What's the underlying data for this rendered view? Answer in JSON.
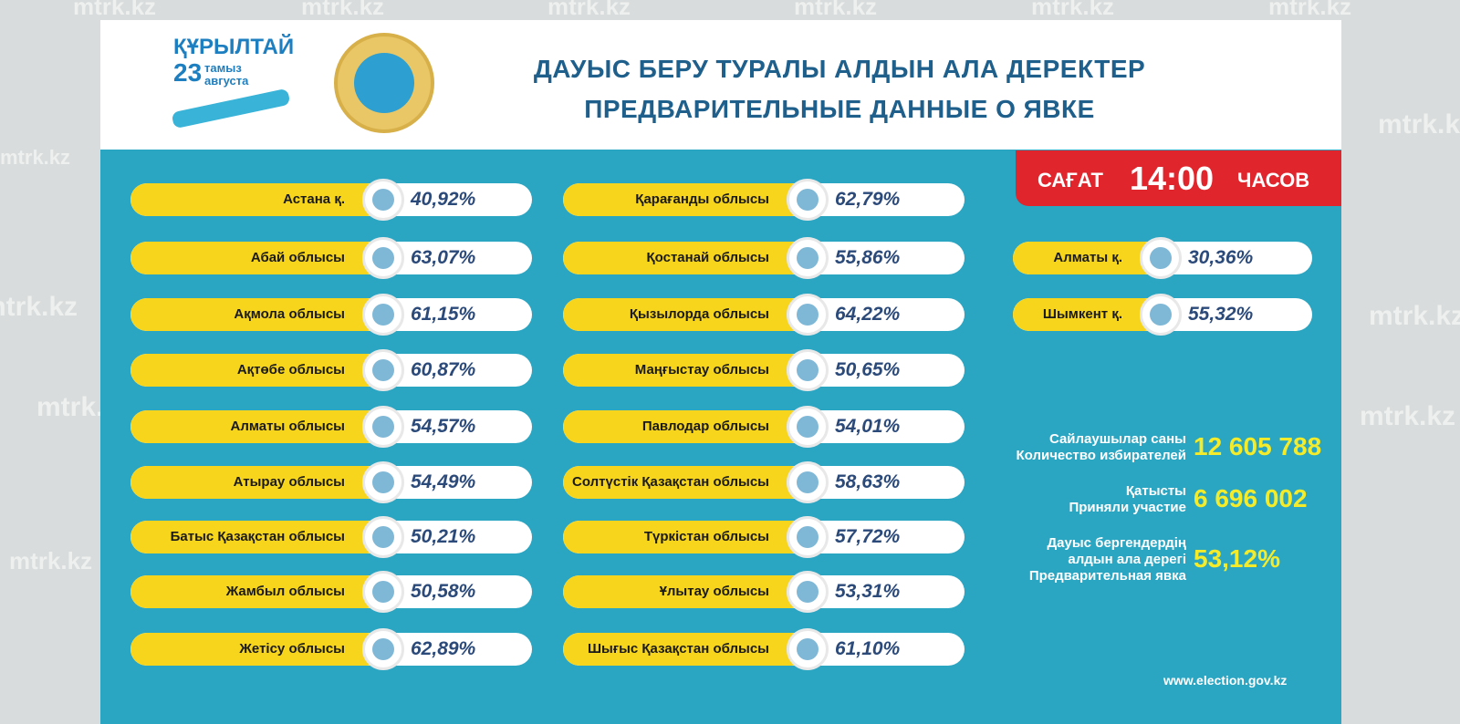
{
  "watermark": "mtrk.kz",
  "header": {
    "logo": {
      "word": "ҚҰРЫЛТАЙ",
      "day": "23",
      "month_kz": "тамыз",
      "month_ru": "августа"
    },
    "title_kz": "ДАУЫС БЕРУ ТУРАЛЫ АЛДЫН АЛА ДЕРЕКТЕР",
    "title_ru": "ПРЕДВАРИТЕЛЬНЫЕ ДАННЫЕ О ЯВКЕ"
  },
  "time": {
    "prefix": "САҒАТ",
    "time": "14:00",
    "suffix": "ЧАСОВ"
  },
  "columns": [
    [
      {
        "name": "Астана қ.",
        "value": "40,92%"
      },
      {
        "name": "Абай облысы",
        "value": "63,07%"
      },
      {
        "name": "Ақмола облысы",
        "value": "61,15%"
      },
      {
        "name": "Ақтөбе облысы",
        "value": "60,87%"
      },
      {
        "name": "Алматы облысы",
        "value": "54,57%"
      },
      {
        "name": "Атырау облысы",
        "value": "54,49%"
      },
      {
        "name": "Батыс Қазақстан облысы",
        "value": "50,21%"
      },
      {
        "name": "Жамбыл облысы",
        "value": "50,58%"
      },
      {
        "name": "Жетісу облысы",
        "value": "62,89%"
      }
    ],
    [
      {
        "name": "Қарағанды облысы",
        "value": "62,79%"
      },
      {
        "name": "Қостанай облысы",
        "value": "55,86%"
      },
      {
        "name": "Қызылорда облысы",
        "value": "64,22%"
      },
      {
        "name": "Маңғыстау облысы",
        "value": "50,65%"
      },
      {
        "name": "Павлодар облысы",
        "value": "54,01%"
      },
      {
        "name": "Солтүстік Қазақстан облысы",
        "value": "58,63%"
      },
      {
        "name": "Түркістан облысы",
        "value": "57,72%"
      },
      {
        "name": "Ұлытау облысы",
        "value": "53,31%"
      },
      {
        "name": "Шығыс Қазақстан облысы",
        "value": "61,10%"
      }
    ],
    [
      {
        "name": "Алматы қ.",
        "value": "30,36%"
      },
      {
        "name": "Шымкент қ.",
        "value": "55,32%"
      }
    ]
  ],
  "stats": [
    {
      "label": [
        "Сайлаушылар саны",
        "Количество избирателей"
      ],
      "value": "12 605 788"
    },
    {
      "label": [
        "Қатысты",
        "Приняли участие"
      ],
      "value": "6 696 002"
    },
    {
      "label": [
        "Дауыс бергендердің",
        "алдын ала дерегі",
        "Предварительная явка"
      ],
      "value": "53,12%"
    }
  ],
  "footer": "www.election.gov.kz"
}
